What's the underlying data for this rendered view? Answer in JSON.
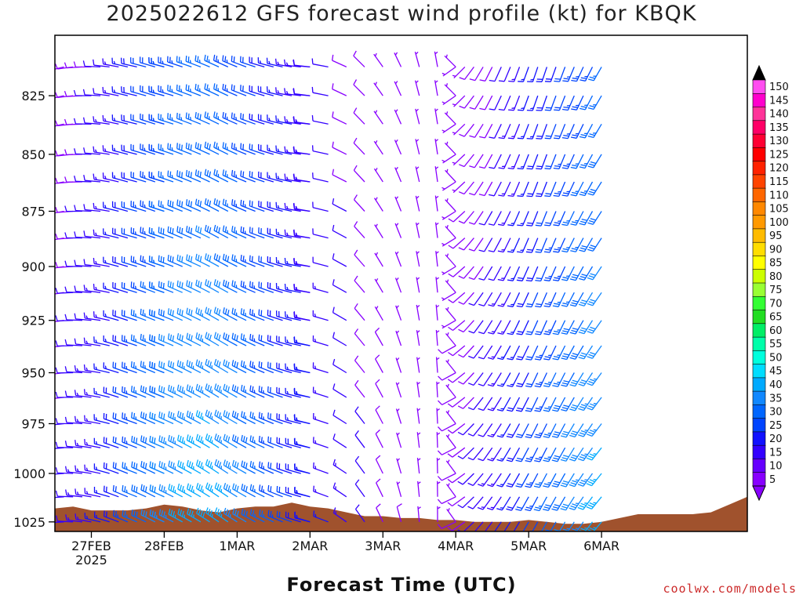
{
  "chart_data": {
    "type": "wind-profile",
    "title": "2025022612 GFS forecast wind profile (kt) for KBQK",
    "xlabel": "Forecast Time (UTC)",
    "credit": "coolwx.com/models",
    "y_axis": {
      "label": "",
      "scale": "log-pressure",
      "range": [
        800,
        1030
      ],
      "ticks": [
        825,
        850,
        875,
        900,
        925,
        950,
        975,
        1000,
        1025
      ]
    },
    "x_axis": {
      "range_hours": [
        0,
        228
      ],
      "ticks": [
        {
          "label": "27FEB",
          "sublabel": "2025",
          "hour": 12
        },
        {
          "label": "28FEB",
          "sublabel": "",
          "hour": 36
        },
        {
          "label": "1MAR",
          "sublabel": "",
          "hour": 60
        },
        {
          "label": "2MAR",
          "sublabel": "",
          "hour": 84
        },
        {
          "label": "3MAR",
          "sublabel": "",
          "hour": 108
        },
        {
          "label": "4MAR",
          "sublabel": "",
          "hour": 132
        },
        {
          "label": "5MAR",
          "sublabel": "",
          "hour": 156
        },
        {
          "label": "6MAR",
          "sublabel": "",
          "hour": 180
        }
      ]
    },
    "terrain_color": "#a0522d",
    "levels": [
      813,
      825,
      837,
      850,
      862,
      875,
      887,
      900,
      912,
      925,
      937,
      950,
      962,
      975,
      987,
      1000,
      1012,
      1025
    ],
    "series": [
      {
        "start": 0,
        "end": 36,
        "step": 3,
        "dir": [
          255,
          262,
          268,
          272,
          275,
          278,
          282,
          286,
          288,
          288,
          290,
          292,
          290
        ],
        "spd": [
          9,
          10,
          11,
          12,
          13,
          14,
          16,
          18,
          21,
          24,
          27,
          28,
          30
        ]
      },
      {
        "start": 36,
        "end": 84,
        "step": 3,
        "dir": [
          290,
          292,
          294,
          295,
          296,
          298,
          300,
          300,
          298,
          296,
          294,
          292,
          290,
          288,
          285,
          282,
          280
        ],
        "spd": [
          30,
          32,
          33,
          34,
          34,
          35,
          34,
          33,
          31,
          29,
          27,
          25,
          23,
          21,
          19,
          17,
          16
        ]
      },
      {
        "start": 84,
        "end": 132,
        "step": 6,
        "dir": [
          282,
          286,
          300,
          320,
          330,
          340,
          350,
          355,
          320
        ],
        "spd": [
          16,
          14,
          12,
          10,
          8,
          7,
          6,
          5,
          6
        ]
      },
      {
        "start": 132,
        "end": 180,
        "step": 3,
        "dir": [
          240,
          230,
          222,
          216,
          212,
          210,
          208,
          206,
          205,
          204,
          204,
          205,
          206,
          208,
          210,
          212,
          215
        ],
        "spd": [
          8,
          9,
          10,
          11,
          12,
          14,
          16,
          18,
          20,
          22,
          24,
          26,
          28,
          30,
          31,
          33,
          34
        ]
      }
    ],
    "colorbar": {
      "labels": [
        150,
        145,
        140,
        135,
        130,
        125,
        120,
        115,
        110,
        105,
        100,
        95,
        90,
        85,
        80,
        75,
        70,
        65,
        60,
        55,
        50,
        45,
        40,
        35,
        30,
        25,
        20,
        15,
        10,
        5
      ],
      "colors": [
        "#ff4df0",
        "#ff00cc",
        "#ff3399",
        "#ff0066",
        "#ff0033",
        "#ff0000",
        "#ff2200",
        "#ff4400",
        "#ff6600",
        "#ff8800",
        "#ff9900",
        "#ffbb00",
        "#ffdd00",
        "#ffff00",
        "#ccff00",
        "#99ff33",
        "#33ff33",
        "#22dd22",
        "#00ee66",
        "#00ffaa",
        "#00ffdd",
        "#00ddff",
        "#00aaff",
        "#1188ff",
        "#0066ff",
        "#0044ff",
        "#1111ff",
        "#3300ff",
        "#6600ff",
        "#8800ff"
      ],
      "top_arrow_color": "#000000",
      "bottom_arrow_color": "#8800ff"
    }
  }
}
